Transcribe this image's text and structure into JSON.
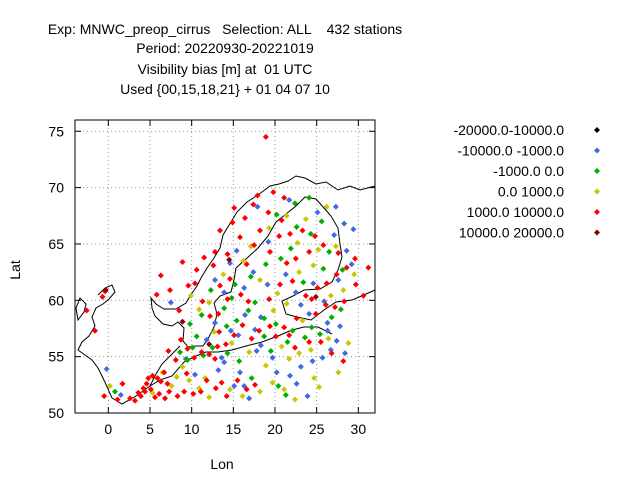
{
  "chart_data": {
    "type": "scatter",
    "title_lines": [
      "Exp: MNWC_preop_cirrus   Selection: ALL    432 stations",
      "Period: 20220930-20221019",
      "Visibility bias [m] at  01 UTC",
      "Used {00,15,18,21} + 01 04 07 10"
    ],
    "xlabel": "Lon",
    "ylabel": "Lat",
    "xlim": [
      -4,
      32
    ],
    "ylim": [
      50,
      76
    ],
    "xticks": [
      0,
      5,
      10,
      15,
      20,
      25,
      30
    ],
    "yticks": [
      50,
      55,
      60,
      65,
      70,
      75
    ],
    "grid": true,
    "legend_position": "right",
    "series": [
      {
        "name": "-20000.0-10000.0",
        "color": "#000000",
        "points": []
      },
      {
        "name": "-10000.0 -1000.0",
        "color": "#4169e1",
        "points": [
          [
            -0.2,
            53.9
          ],
          [
            1.5,
            51.6
          ],
          [
            7.5,
            59.8
          ],
          [
            9.3,
            54.8
          ],
          [
            10.4,
            53.4
          ],
          [
            11.8,
            56.5
          ],
          [
            13.2,
            53.8
          ],
          [
            13.9,
            54.5
          ],
          [
            15.8,
            53.6
          ],
          [
            16.3,
            52.4
          ],
          [
            16.9,
            51.3
          ],
          [
            17.8,
            55.5
          ],
          [
            18.3,
            56.0
          ],
          [
            19.7,
            54.9
          ],
          [
            20.2,
            53.6
          ],
          [
            21.8,
            53.3
          ],
          [
            22.6,
            52.6
          ],
          [
            23.1,
            54.1
          ],
          [
            23.9,
            51.5
          ],
          [
            24.5,
            54.6
          ],
          [
            25.7,
            54.9
          ],
          [
            26.3,
            57.3
          ],
          [
            26.7,
            55.6
          ],
          [
            27.4,
            56.4
          ],
          [
            27.8,
            57.7
          ],
          [
            28.4,
            55.3
          ],
          [
            26.3,
            58.0
          ],
          [
            24.1,
            58.8
          ],
          [
            25.9,
            59.9
          ],
          [
            23.1,
            59.6
          ],
          [
            21.3,
            62.3
          ],
          [
            24.6,
            61.5
          ],
          [
            27.6,
            61.8
          ],
          [
            29.2,
            63.2
          ],
          [
            28.6,
            64.4
          ],
          [
            27.1,
            65.8
          ],
          [
            29.4,
            66.3
          ],
          [
            28.3,
            66.8
          ],
          [
            25.1,
            67.8
          ],
          [
            21.7,
            68.9
          ],
          [
            17.9,
            68.3
          ],
          [
            19.2,
            65.2
          ],
          [
            15.4,
            64.4
          ],
          [
            14.6,
            63.3
          ],
          [
            16.3,
            61.1
          ],
          [
            13.9,
            60.7
          ],
          [
            12.8,
            61.8
          ],
          [
            16.4,
            58.7
          ],
          [
            18.3,
            58.5
          ],
          [
            14.7,
            57.3
          ],
          [
            15.6,
            56.9
          ],
          [
            17.6,
            57.4
          ],
          [
            12.8,
            58.0
          ],
          [
            15.1,
            52.4
          ],
          [
            13.6,
            54.9
          ],
          [
            22.5,
            60.7
          ],
          [
            19.1,
            61.4
          ],
          [
            17.4,
            62.5
          ],
          [
            27.3,
            68.3
          ]
        ]
      },
      {
        "name": "-1000.0 0.0",
        "color": "#00b000",
        "points": [
          [
            0.8,
            51.9
          ],
          [
            9.8,
            57.9
          ],
          [
            10.6,
            56.8
          ],
          [
            11.4,
            55.1
          ],
          [
            12.5,
            55.8
          ],
          [
            14.2,
            57.7
          ],
          [
            15.4,
            58.2
          ],
          [
            16.8,
            59.1
          ],
          [
            17.6,
            59.8
          ],
          [
            18.7,
            58.4
          ],
          [
            20.1,
            57.9
          ],
          [
            21.5,
            56.3
          ],
          [
            22.1,
            57.3
          ],
          [
            23.6,
            56.7
          ],
          [
            24.4,
            57.6
          ],
          [
            25.4,
            57.0
          ],
          [
            26.8,
            58.5
          ],
          [
            27.9,
            59.2
          ],
          [
            23.4,
            61.6
          ],
          [
            25.8,
            62.8
          ],
          [
            26.5,
            64.3
          ],
          [
            24.3,
            65.9
          ],
          [
            25.6,
            67.0
          ],
          [
            22.6,
            66.5
          ],
          [
            21.9,
            64.6
          ],
          [
            20.7,
            63.7
          ],
          [
            18.9,
            63.2
          ],
          [
            17.1,
            62.1
          ],
          [
            15.2,
            61.4
          ],
          [
            14.8,
            60.2
          ],
          [
            13.9,
            59.3
          ],
          [
            12.3,
            60.9
          ],
          [
            11.2,
            58.7
          ],
          [
            8.6,
            55.4
          ],
          [
            9.5,
            54.7
          ],
          [
            10.1,
            55.8
          ],
          [
            14.3,
            55.3
          ],
          [
            15.7,
            54.6
          ],
          [
            17.2,
            53.1
          ],
          [
            20.4,
            52.4
          ],
          [
            21.3,
            51.6
          ],
          [
            18.7,
            56.8
          ],
          [
            19.5,
            55.5
          ],
          [
            28.1,
            62.7
          ],
          [
            24.1,
            69.1
          ],
          [
            22.4,
            68.6
          ],
          [
            20.2,
            67.6
          ]
        ]
      },
      {
        "name": "0.0 1000.0",
        "color": "#c8c800",
        "points": [
          [
            0.2,
            52.4
          ],
          [
            8.2,
            53.2
          ],
          [
            8.9,
            54.1
          ],
          [
            9.7,
            52.9
          ],
          [
            10.9,
            52.2
          ],
          [
            12.1,
            51.4
          ],
          [
            14.6,
            52.1
          ],
          [
            16.1,
            51.5
          ],
          [
            18.2,
            51.9
          ],
          [
            19.7,
            52.7
          ],
          [
            21.1,
            52.1
          ],
          [
            22.4,
            51.2
          ],
          [
            24.7,
            53.1
          ],
          [
            25.3,
            52.3
          ],
          [
            27.6,
            53.6
          ],
          [
            28.8,
            56.2
          ],
          [
            26.4,
            56.6
          ],
          [
            24.3,
            55.6
          ],
          [
            22.9,
            55.3
          ],
          [
            21.7,
            54.8
          ],
          [
            23.3,
            58.2
          ],
          [
            21.4,
            59.7
          ],
          [
            20.3,
            60.6
          ],
          [
            22.9,
            62.5
          ],
          [
            24.6,
            63.1
          ],
          [
            25.2,
            64.5
          ],
          [
            27.3,
            64.8
          ],
          [
            23.7,
            67.2
          ],
          [
            21.4,
            67.5
          ],
          [
            19.3,
            66.4
          ],
          [
            17.1,
            64.8
          ],
          [
            16.2,
            63.5
          ],
          [
            13.8,
            62.3
          ],
          [
            12.1,
            59.8
          ],
          [
            10.9,
            59.2
          ],
          [
            9.9,
            60.4
          ],
          [
            12.7,
            57.2
          ],
          [
            14.8,
            56.2
          ],
          [
            16.9,
            55.4
          ],
          [
            11.6,
            53.1
          ],
          [
            7.6,
            52.4
          ],
          [
            6.5,
            53.6
          ],
          [
            5.3,
            51.8
          ],
          [
            18.9,
            54.2
          ],
          [
            20.8,
            55.9
          ],
          [
            26.7,
            60.4
          ],
          [
            28.2,
            60.9
          ],
          [
            29.5,
            62.3
          ],
          [
            26.2,
            68.3
          ],
          [
            22.7,
            65.1
          ],
          [
            19.8,
            59.1
          ],
          [
            18.2,
            61.8
          ]
        ]
      },
      {
        "name": "1000.0 10000.0",
        "color": "#ff0000",
        "points": [
          [
            18.9,
            74.5
          ],
          [
            -2.6,
            59.1
          ],
          [
            -0.7,
            60.3
          ],
          [
            -0.4,
            60.8
          ],
          [
            -1.6,
            57.3
          ],
          [
            1.1,
            51.2
          ],
          [
            2.6,
            51.3
          ],
          [
            3.2,
            51.1
          ],
          [
            3.9,
            51.5
          ],
          [
            4.4,
            51.9
          ],
          [
            4.6,
            52.6
          ],
          [
            5.1,
            52.1
          ],
          [
            5.6,
            51.4
          ],
          [
            6.1,
            51.7
          ],
          [
            6.8,
            51.3
          ],
          [
            7.3,
            51.9
          ],
          [
            5.3,
            53.3
          ],
          [
            5.9,
            53.1
          ],
          [
            6.3,
            52.8
          ],
          [
            7.1,
            52.6
          ],
          [
            6.7,
            53.6
          ],
          [
            4.8,
            53.1
          ],
          [
            4.2,
            52.2
          ],
          [
            3.6,
            51.8
          ],
          [
            8.3,
            51.5
          ],
          [
            9.1,
            51.9
          ],
          [
            10.2,
            51.7
          ],
          [
            11.1,
            51.9
          ],
          [
            11.8,
            52.9
          ],
          [
            12.9,
            52.2
          ],
          [
            13.6,
            52.7
          ],
          [
            14.2,
            51.5
          ],
          [
            15.5,
            52.9
          ],
          [
            16.6,
            52.1
          ],
          [
            17.6,
            52.5
          ],
          [
            9.5,
            55.7
          ],
          [
            10.3,
            54.9
          ],
          [
            11.2,
            55.4
          ],
          [
            12.1,
            55.2
          ],
          [
            12.8,
            54.8
          ],
          [
            13.1,
            55.9
          ],
          [
            14.1,
            56.1
          ],
          [
            13.3,
            57.2
          ],
          [
            15.1,
            56.9
          ],
          [
            16.1,
            57.8
          ],
          [
            17.2,
            56.6
          ],
          [
            18.1,
            57.3
          ],
          [
            16.8,
            59.9
          ],
          [
            15.9,
            60.5
          ],
          [
            14.6,
            61.9
          ],
          [
            13.4,
            61.3
          ],
          [
            12.6,
            63.1
          ],
          [
            14.3,
            64.1
          ],
          [
            15.8,
            65.6
          ],
          [
            16.6,
            63.2
          ],
          [
            17.5,
            64.9
          ],
          [
            18.2,
            66.2
          ],
          [
            19.4,
            64.3
          ],
          [
            20.5,
            65.7
          ],
          [
            21.4,
            63.3
          ],
          [
            22.1,
            61.7
          ],
          [
            23.7,
            60.4
          ],
          [
            24.4,
            60.1
          ],
          [
            25.1,
            61.1
          ],
          [
            26.2,
            61.5
          ],
          [
            27.4,
            62.3
          ],
          [
            28.6,
            62.9
          ],
          [
            25.8,
            64.9
          ],
          [
            24.1,
            64.3
          ],
          [
            23.3,
            66.2
          ],
          [
            21.8,
            65.9
          ],
          [
            20.8,
            67.1
          ],
          [
            19.2,
            67.8
          ],
          [
            17.4,
            68.5
          ],
          [
            24.8,
            65.7
          ],
          [
            27.6,
            64.2
          ],
          [
            29.7,
            61.4
          ],
          [
            30.6,
            60.4
          ],
          [
            31.2,
            62.9
          ],
          [
            29.6,
            63.7
          ],
          [
            28.3,
            59.9
          ],
          [
            27.2,
            59.4
          ],
          [
            26.1,
            59.6
          ],
          [
            24.9,
            58.8
          ],
          [
            22.6,
            58.4
          ],
          [
            21.1,
            57.6
          ],
          [
            20.1,
            56.8
          ],
          [
            19.4,
            57.7
          ],
          [
            21.7,
            56.9
          ],
          [
            22.4,
            55.8
          ],
          [
            24.1,
            56.3
          ],
          [
            25.5,
            56.3
          ],
          [
            26.8,
            55.3
          ],
          [
            28.2,
            54.6
          ],
          [
            12.2,
            58.6
          ],
          [
            11.3,
            59.9
          ],
          [
            10.4,
            61.5
          ],
          [
            9.6,
            61.3
          ],
          [
            8.5,
            59.1
          ],
          [
            7.4,
            60.9
          ],
          [
            6.3,
            62.2
          ],
          [
            5.8,
            60.5
          ],
          [
            8.9,
            63.4
          ],
          [
            10.6,
            62.7
          ],
          [
            11.5,
            63.8
          ],
          [
            13.4,
            66.2
          ],
          [
            12.8,
            64.3
          ],
          [
            14.9,
            66.9
          ],
          [
            16.4,
            67.3
          ],
          [
            15.1,
            68.2
          ],
          [
            17.9,
            69.3
          ],
          [
            19.8,
            69.6
          ],
          [
            21.1,
            69.1
          ],
          [
            -0.5,
            51.5
          ],
          [
            1.7,
            52.6
          ],
          [
            9.4,
            53.5
          ],
          [
            8.1,
            54.7
          ],
          [
            7.2,
            55.5
          ],
          [
            8.7,
            56.5
          ],
          [
            13.2,
            58.8
          ],
          [
            14.3,
            60.1
          ],
          [
            19.3,
            60.1
          ],
          [
            20.6,
            61.4
          ],
          [
            22.5,
            63.7
          ]
        ]
      },
      {
        "name": "10000.0 20000.0",
        "color": "#8b0000",
        "points": [
          [
            -0.3,
            60.9
          ],
          [
            8.9,
            58.1
          ],
          [
            12.1,
            56.1
          ],
          [
            14.5,
            63.6
          ],
          [
            24.9,
            60.3
          ]
        ]
      }
    ]
  }
}
